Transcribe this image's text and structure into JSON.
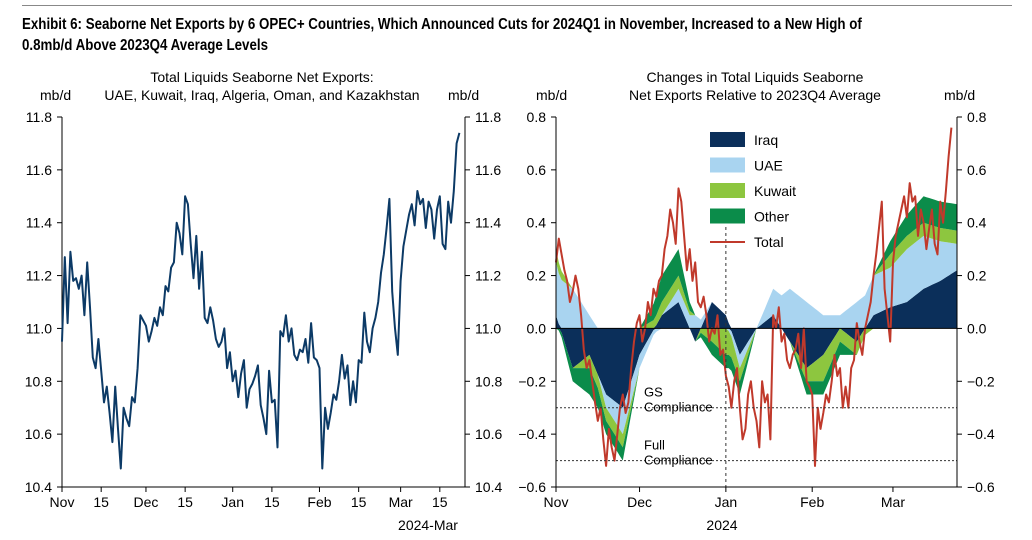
{
  "exhibit_title": "Exhibit 6: Seaborne Net Exports by 6 OPEC+ Countries, Which Announced Cuts for 2024Q1 in November, Increased to a New High of 0.8mb/d Above 2023Q4 Average Levels",
  "chart_data": [
    {
      "type": "line",
      "title_line1": "Total Liquids Seaborne Net Exports:",
      "title_line2": "UAE, Kuwait, Iraq, Algeria, Oman, and Kazakhstan",
      "ylabel_left": "mb/d",
      "ylabel_right": "mb/d",
      "ylim": [
        10.4,
        11.8
      ],
      "yticks": [
        "10.4",
        "10.6",
        "10.8",
        "11.0",
        "11.2",
        "11.4",
        "11.6",
        "11.8"
      ],
      "xlim": [
        0,
        144
      ],
      "x_tick_labels": [
        "Nov",
        "15",
        "Dec",
        "15",
        "Jan",
        "15",
        "Feb",
        "15",
        "Mar",
        "15"
      ],
      "x_tick_positions": [
        0,
        14,
        30,
        44,
        61,
        75,
        92,
        106,
        121,
        135
      ],
      "x_end_label": "2024-Mar",
      "grid": false,
      "series": [
        {
          "name": "Total Liquids Seaborne Net Exports",
          "color": "#0c3a66",
          "values": [
            10.95,
            11.27,
            11.02,
            11.29,
            11.18,
            11.19,
            11.15,
            11.2,
            11.05,
            11.25,
            11.08,
            10.89,
            10.85,
            10.96,
            10.84,
            10.72,
            10.78,
            10.68,
            10.57,
            10.78,
            10.62,
            10.47,
            10.7,
            10.66,
            10.63,
            10.74,
            10.72,
            10.85,
            11.05,
            11.03,
            11.01,
            10.95,
            10.99,
            11.04,
            11.01,
            11.08,
            11.05,
            11.16,
            11.14,
            11.23,
            11.25,
            11.4,
            11.36,
            11.28,
            11.5,
            11.47,
            11.32,
            11.19,
            11.35,
            11.15,
            11.29,
            11.04,
            11.02,
            11.08,
            11.03,
            10.96,
            10.93,
            10.95,
            11.0,
            10.85,
            10.91,
            10.8,
            10.84,
            10.74,
            10.83,
            10.88,
            10.7,
            10.77,
            10.79,
            10.82,
            10.86,
            10.71,
            10.66,
            10.6,
            10.84,
            10.72,
            10.73,
            10.55,
            10.99,
            10.97,
            11.05,
            10.95,
            11.0,
            10.9,
            10.88,
            10.92,
            10.91,
            10.96,
            10.87,
            11.02,
            10.89,
            10.88,
            10.85,
            10.47,
            10.7,
            10.62,
            10.68,
            10.75,
            10.73,
            10.8,
            10.9,
            10.81,
            10.86,
            10.71,
            10.8,
            10.72,
            10.88,
            10.87,
            11.06,
            10.95,
            10.91,
            11.0,
            11.04,
            11.1,
            11.21,
            11.28,
            11.38,
            11.49,
            11.14,
            11.0,
            10.9,
            11.18,
            11.31,
            11.37,
            11.43,
            11.47,
            11.39,
            11.52,
            11.47,
            11.49,
            11.38,
            11.48,
            11.45,
            11.34,
            11.45,
            11.5,
            11.32,
            11.3,
            11.48,
            11.4,
            11.52,
            11.7,
            11.74
          ]
        }
      ]
    },
    {
      "type": "area",
      "stacked": true,
      "title_line1": "Changes in Total Liquids Seaborne",
      "title_line2": "Net Exports Relative to 2023Q4 Average",
      "ylabel_left": "mb/d",
      "ylabel_right": "mb/d",
      "ylim": [
        -0.6,
        0.8
      ],
      "yticks": [
        "−0.6",
        "−0.4",
        "−0.2",
        "0.0",
        "0.2",
        "0.4",
        "0.6",
        "0.8"
      ],
      "xlim": [
        0,
        144
      ],
      "x_tick_labels": [
        "Nov",
        "Dec",
        "Jan",
        "Feb",
        "Mar"
      ],
      "x_tick_positions": [
        0,
        30,
        61,
        92,
        121
      ],
      "x_sub_label": "2024",
      "vline_at": 61,
      "grid": false,
      "legend": [
        "Iraq",
        "UAE",
        "Kuwait",
        "Other",
        "Total"
      ],
      "legend_position": "top-center",
      "annotations": [
        {
          "text_line1": "GS",
          "text_line2": "Compliance",
          "y": -0.3
        },
        {
          "text_line1": "Full",
          "text_line2": "Compliance",
          "y": -0.5
        }
      ],
      "series": [
        {
          "name": "Iraq",
          "color": "#0b2f5a",
          "anchors": [
            [
              0,
              0.05
            ],
            [
              6,
              -0.15
            ],
            [
              12,
              -0.1
            ],
            [
              18,
              -0.25
            ],
            [
              24,
              -0.3
            ],
            [
              30,
              -0.1
            ],
            [
              38,
              0.05
            ],
            [
              44,
              0.1
            ],
            [
              50,
              -0.05
            ],
            [
              56,
              0.1
            ],
            [
              61,
              0.05
            ],
            [
              66,
              -0.1
            ],
            [
              72,
              0.0
            ],
            [
              78,
              0.05
            ],
            [
              84,
              -0.05
            ],
            [
              90,
              -0.15
            ],
            [
              96,
              -0.1
            ],
            [
              102,
              0.0
            ],
            [
              108,
              -0.05
            ],
            [
              114,
              0.05
            ],
            [
              120,
              0.08
            ],
            [
              126,
              0.1
            ],
            [
              132,
              0.15
            ],
            [
              138,
              0.18
            ],
            [
              144,
              0.22
            ]
          ]
        },
        {
          "name": "UAE",
          "color": "#a9d4f0",
          "anchors": [
            [
              0,
              0.2
            ],
            [
              6,
              0.15
            ],
            [
              12,
              0.05
            ],
            [
              18,
              -0.05
            ],
            [
              24,
              -0.1
            ],
            [
              30,
              -0.05
            ],
            [
              38,
              0.0
            ],
            [
              44,
              0.05
            ],
            [
              50,
              0.05
            ],
            [
              56,
              0.0
            ],
            [
              61,
              0.0
            ],
            [
              66,
              -0.05
            ],
            [
              72,
              0.0
            ],
            [
              78,
              0.1
            ],
            [
              84,
              0.15
            ],
            [
              90,
              0.1
            ],
            [
              96,
              0.05
            ],
            [
              102,
              0.05
            ],
            [
              108,
              0.1
            ],
            [
              114,
              0.15
            ],
            [
              120,
              0.15
            ],
            [
              126,
              0.2
            ],
            [
              132,
              0.2
            ],
            [
              138,
              0.15
            ],
            [
              144,
              0.1
            ]
          ]
        },
        {
          "name": "Kuwait",
          "color": "#8dc63f",
          "anchors": [
            [
              0,
              0.05
            ],
            [
              6,
              0.0
            ],
            [
              12,
              -0.05
            ],
            [
              18,
              -0.05
            ],
            [
              24,
              -0.05
            ],
            [
              30,
              0.0
            ],
            [
              38,
              0.05
            ],
            [
              44,
              0.05
            ],
            [
              50,
              0.0
            ],
            [
              56,
              -0.05
            ],
            [
              61,
              -0.1
            ],
            [
              66,
              -0.05
            ],
            [
              72,
              0.0
            ],
            [
              78,
              0.0
            ],
            [
              84,
              0.0
            ],
            [
              90,
              -0.05
            ],
            [
              96,
              -0.1
            ],
            [
              102,
              -0.05
            ],
            [
              108,
              -0.05
            ],
            [
              114,
              0.0
            ],
            [
              120,
              0.05
            ],
            [
              126,
              0.05
            ],
            [
              132,
              0.05
            ],
            [
              138,
              0.05
            ],
            [
              144,
              0.05
            ]
          ]
        },
        {
          "name": "Other",
          "color": "#0b8c4a",
          "anchors": [
            [
              0,
              0.0
            ],
            [
              6,
              -0.05
            ],
            [
              12,
              -0.1
            ],
            [
              18,
              -0.05
            ],
            [
              24,
              -0.05
            ],
            [
              30,
              0.0
            ],
            [
              38,
              0.1
            ],
            [
              44,
              0.1
            ],
            [
              50,
              0.0
            ],
            [
              56,
              -0.05
            ],
            [
              61,
              -0.05
            ],
            [
              66,
              -0.05
            ],
            [
              72,
              0.0
            ],
            [
              78,
              0.0
            ],
            [
              84,
              0.0
            ],
            [
              90,
              -0.05
            ],
            [
              96,
              -0.05
            ],
            [
              102,
              -0.05
            ],
            [
              108,
              0.0
            ],
            [
              114,
              0.0
            ],
            [
              120,
              0.05
            ],
            [
              126,
              0.08
            ],
            [
              132,
              0.1
            ],
            [
              138,
              0.1
            ],
            [
              144,
              0.1
            ]
          ]
        },
        {
          "name": "Total",
          "color": "#c0392b",
          "type": "line",
          "values": [
            0.25,
            0.34,
            0.28,
            0.22,
            0.18,
            0.1,
            0.14,
            0.2,
            0.15,
            0.05,
            -0.08,
            -0.15,
            -0.12,
            -0.2,
            -0.28,
            -0.35,
            -0.3,
            -0.42,
            -0.52,
            -0.38,
            -0.45,
            -0.5,
            -0.4,
            -0.3,
            -0.25,
            -0.32,
            -0.28,
            -0.15,
            -0.05,
            0.02,
            0.05,
            -0.05,
            0.0,
            0.1,
            0.05,
            0.15,
            0.12,
            0.18,
            0.2,
            0.3,
            0.35,
            0.45,
            0.4,
            0.32,
            0.53,
            0.48,
            0.35,
            0.22,
            0.3,
            0.18,
            0.25,
            0.1,
            0.08,
            0.12,
            0.05,
            -0.05,
            0.0,
            -0.02,
            0.05,
            -0.1,
            -0.08,
            -0.18,
            -0.22,
            -0.3,
            -0.2,
            -0.15,
            -0.3,
            -0.42,
            -0.38,
            -0.25,
            -0.2,
            -0.3,
            -0.35,
            -0.45,
            -0.2,
            -0.28,
            -0.25,
            -0.42,
            0.05,
            0.0,
            0.08,
            -0.05,
            -0.02,
            -0.12,
            -0.15,
            -0.1,
            -0.08,
            -0.02,
            -0.15,
            0.0,
            -0.2,
            -0.22,
            -0.25,
            -0.52,
            -0.3,
            -0.38,
            -0.32,
            -0.25,
            -0.28,
            -0.2,
            -0.1,
            -0.18,
            -0.15,
            -0.3,
            -0.22,
            -0.3,
            -0.15,
            -0.12,
            0.02,
            -0.05,
            -0.1,
            0.0,
            0.05,
            0.1,
            0.2,
            0.28,
            0.38,
            0.48,
            0.15,
            0.05,
            -0.05,
            0.25,
            0.35,
            0.4,
            0.45,
            0.5,
            0.42,
            0.55,
            0.48,
            0.5,
            0.35,
            0.45,
            0.4,
            0.3,
            0.38,
            0.45,
            0.32,
            0.28,
            0.48,
            0.4,
            0.52,
            0.65,
            0.76
          ]
        }
      ]
    }
  ]
}
